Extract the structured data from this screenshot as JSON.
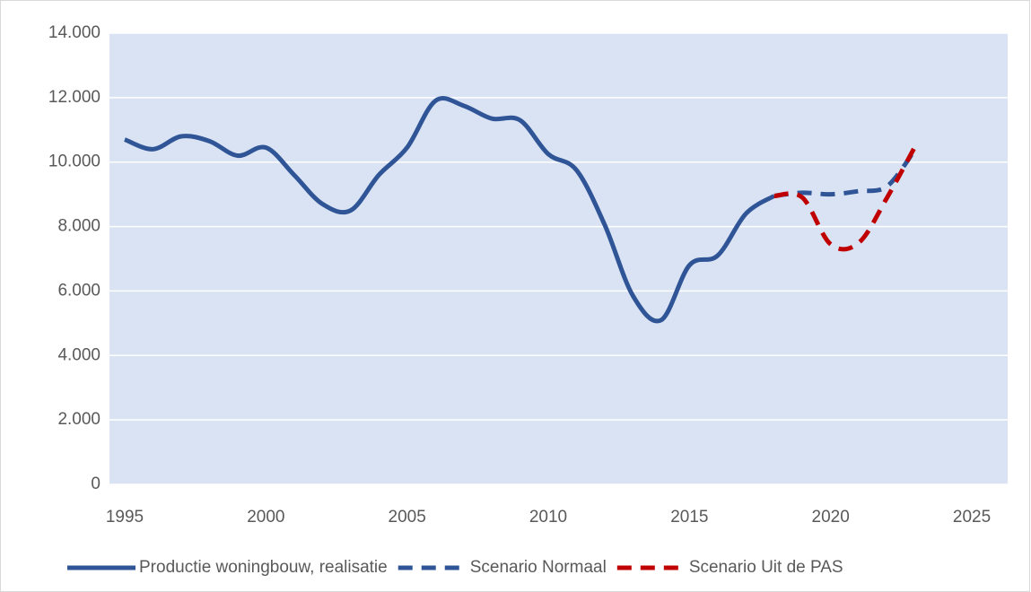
{
  "chart_data": {
    "type": "line",
    "x": [
      1995,
      1996,
      1997,
      1998,
      1999,
      2000,
      2001,
      2002,
      2003,
      2004,
      2005,
      2006,
      2007,
      2008,
      2009,
      2010,
      2011,
      2012,
      2013,
      2014,
      2015,
      2016,
      2017,
      2018,
      2019,
      2020,
      2021,
      2022,
      2023
    ],
    "series": [
      {
        "name": "Productie woningbouw, realisatie",
        "color": "#2f5597",
        "dash": false,
        "values": [
          10700,
          10400,
          10800,
          10650,
          10200,
          10450,
          9600,
          8700,
          8500,
          9600,
          10450,
          11900,
          11750,
          11350,
          11300,
          10250,
          9750,
          8050,
          5850,
          5100,
          6800,
          7100,
          8400,
          8950,
          null,
          null,
          null,
          null,
          null
        ]
      },
      {
        "name": "Scenario Normaal",
        "color": "#2f5597",
        "dash": true,
        "values": [
          null,
          null,
          null,
          null,
          null,
          null,
          null,
          null,
          null,
          null,
          null,
          null,
          null,
          null,
          null,
          null,
          null,
          null,
          null,
          null,
          null,
          null,
          null,
          8950,
          9050,
          9000,
          9100,
          9250,
          10400
        ]
      },
      {
        "name": "Scenario Uit de PAS",
        "color": "#c00000",
        "dash": true,
        "values": [
          null,
          null,
          null,
          null,
          null,
          null,
          null,
          null,
          null,
          null,
          null,
          null,
          null,
          null,
          null,
          null,
          null,
          null,
          null,
          null,
          null,
          null,
          null,
          8950,
          8900,
          7450,
          7500,
          8900,
          10500
        ]
      }
    ],
    "xlim": [
      1994.46,
      2026.27
    ],
    "xticks": [
      1995,
      2000,
      2005,
      2010,
      2015,
      2020,
      2025
    ],
    "ylim": [
      0,
      14000
    ],
    "yticks": [
      0,
      {
        "value": 2000,
        "label": "2.000"
      },
      {
        "value": 4000,
        "label": "4.000"
      },
      {
        "value": 6000,
        "label": "6.000"
      },
      {
        "value": 8000,
        "label": "8.000"
      },
      {
        "value": 10000,
        "label": "10.000"
      },
      {
        "value": 12000,
        "label": "12.000"
      },
      {
        "value": 14000,
        "label": "14.000"
      }
    ],
    "grid": true,
    "plot_background": "#dae3f3",
    "legend": "bottom"
  }
}
